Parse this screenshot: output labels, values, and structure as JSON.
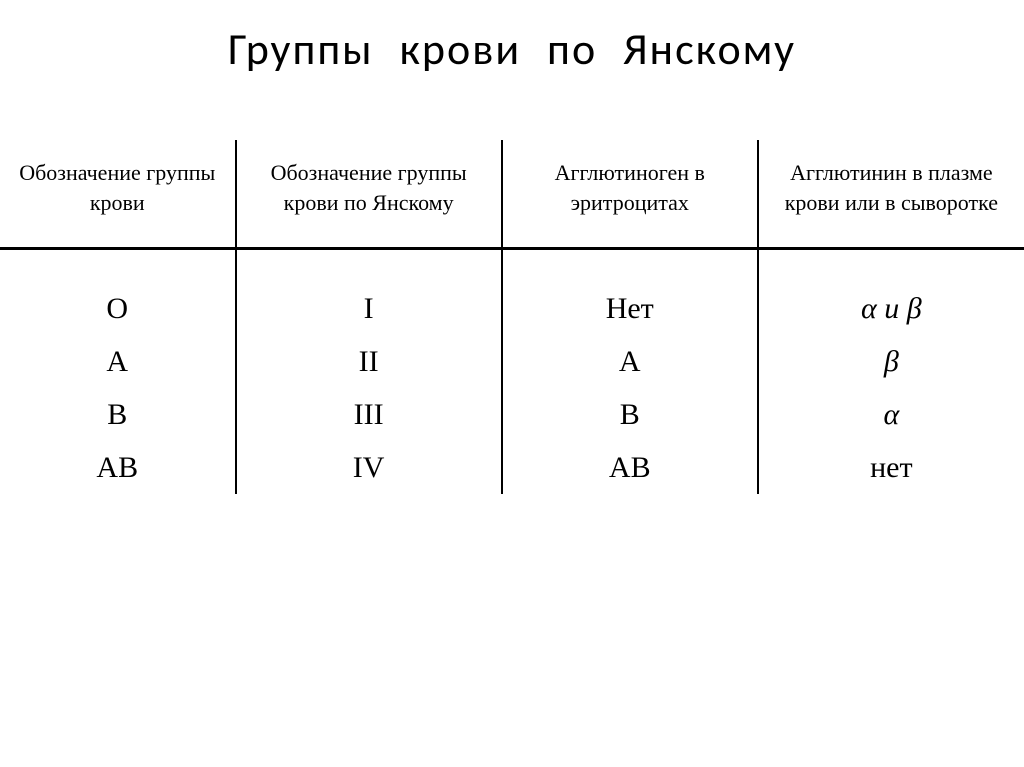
{
  "title": "Группы  крови  по  Янскому",
  "table": {
    "columns": [
      "Обозначение группы крови",
      "Обозначение группы крови по Янскому",
      "Агглютиноген в эритроцитах",
      "Агглютинин в плазме крови или в сыворотке"
    ],
    "rows": [
      {
        "designation": "O",
        "jansky": "I",
        "agglutinogen": "Нет",
        "agglutinin": "α и β"
      },
      {
        "designation": "A",
        "jansky": "II",
        "agglutinogen": "A",
        "agglutinin": "β"
      },
      {
        "designation": "B",
        "jansky": "III",
        "agglutinogen": "B",
        "agglutinin": "α"
      },
      {
        "designation": "AB",
        "jansky": "IV",
        "agglutinogen": "AB",
        "agglutinin": "нет"
      }
    ],
    "header_fontsize": 22,
    "body_fontsize": 30,
    "border_color": "#000000",
    "background_color": "#ffffff",
    "text_color": "#000000"
  }
}
